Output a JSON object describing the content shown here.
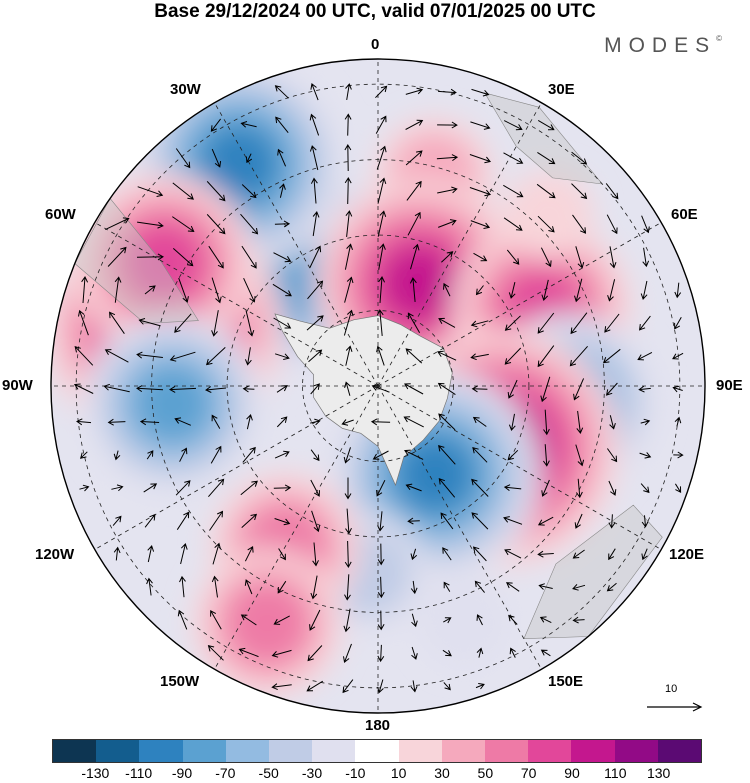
{
  "title": "Base 29/12/2024 00 UTC, valid 07/01/2025 00 UTC",
  "brand": "MODES",
  "brand_mark": "©",
  "longitude_labels": {
    "top": "0",
    "lon30e": "30E",
    "lon60e": "60E",
    "lon90e": "90E",
    "lon120e": "120E",
    "lon150e": "150E",
    "bottom": "180",
    "lon150w": "150W",
    "lon120w": "120W",
    "lon90w": "90W",
    "lon60w": "60W",
    "lon30w": "30W"
  },
  "reference_vector": "10",
  "colorbar": {
    "colors": [
      "#0d3552",
      "#135d8e",
      "#2e82bf",
      "#5ba1d1",
      "#93bbe1",
      "#c0cce6",
      "#e0e0ef",
      "#ffffff",
      "#f8d5da",
      "#f5a9bd",
      "#ee7aa6",
      "#e2479a",
      "#c4178e",
      "#920a86",
      "#5b0a73"
    ],
    "tick_labels": [
      "-130",
      "-110",
      "-90",
      "-70",
      "-50",
      "-30",
      "-10",
      "10",
      "30",
      "50",
      "70",
      "90",
      "110",
      "130"
    ]
  },
  "anomaly_centers": [
    {
      "lon": 15,
      "colat": 43,
      "value": 45
    },
    {
      "lon": 345,
      "colat": 30,
      "value": -40
    },
    {
      "lon": 318,
      "colat": 28,
      "value": -75
    },
    {
      "lon": 328,
      "colat": 52,
      "value": -90
    },
    {
      "lon": 285,
      "colat": 44,
      "value": 115
    },
    {
      "lon": 300,
      "colat": 49,
      "value": 75
    },
    {
      "lon": 265,
      "colat": 41,
      "value": -80
    },
    {
      "lon": 35,
      "colat": 10,
      "value": -20
    },
    {
      "lon": 22,
      "colat": 22,
      "value": 95
    },
    {
      "lon": 65,
      "colat": 36,
      "value": 75
    },
    {
      "lon": 95,
      "colat": 38,
      "value": -85
    },
    {
      "lon": 117,
      "colat": 27,
      "value": 125
    },
    {
      "lon": 147,
      "colat": 21,
      "value": -95
    },
    {
      "lon": 183,
      "colat": 37,
      "value": -35
    },
    {
      "lon": 210,
      "colat": 37,
      "value": 60
    },
    {
      "lon": 205,
      "colat": 52,
      "value": 50
    },
    {
      "lon": 160,
      "colat": 50,
      "value": -25
    },
    {
      "lon": 45,
      "colat": 48,
      "value": 25
    }
  ]
}
